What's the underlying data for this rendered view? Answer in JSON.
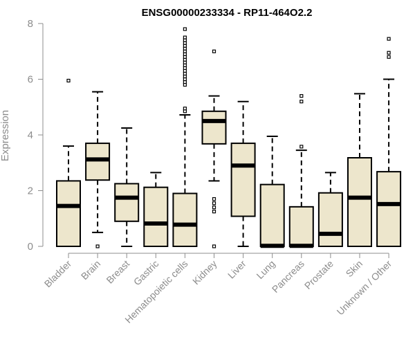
{
  "colors": {
    "box_fill": "#ede6cc",
    "box_stroke": "#000000",
    "axis": "#8c8c8c",
    "text": "#8c8c8c"
  },
  "chart_data": {
    "type": "boxplot",
    "title": "ENSG00000233334 - RP11-464O2.2",
    "xlabel": "",
    "ylabel": "Expression",
    "ylim": [
      0,
      8
    ],
    "yticks": [
      0,
      2,
      4,
      6,
      8
    ],
    "grid": false,
    "legend": "none",
    "categories": [
      "Bladder",
      "Brain",
      "Breast",
      "Gastric",
      "Hematopoietic cells",
      "Kidney",
      "Liver",
      "Lung",
      "Pancreas",
      "Prostate",
      "Skin",
      "Unknown / Other"
    ],
    "boxes": [
      {
        "category": "Bladder",
        "min": 0,
        "q1": 0,
        "median": 1.45,
        "q3": 2.35,
        "max": 3.6,
        "outliers": [
          5.95
        ]
      },
      {
        "category": "Brain",
        "min": 0.5,
        "q1": 2.38,
        "median": 3.12,
        "q3": 3.7,
        "max": 5.55,
        "outliers": [
          0
        ]
      },
      {
        "category": "Breast",
        "min": 0,
        "q1": 0.9,
        "median": 1.75,
        "q3": 2.25,
        "max": 4.25,
        "outliers": []
      },
      {
        "category": "Gastric",
        "min": 0,
        "q1": 0,
        "median": 0.82,
        "q3": 2.12,
        "max": 2.65,
        "outliers": []
      },
      {
        "category": "Hematopoietic cells",
        "min": 0,
        "q1": 0,
        "median": 0.78,
        "q3": 1.9,
        "max": 4.72,
        "outliers": [
          4.85,
          4.95,
          5.8,
          5.9,
          6.0,
          6.1,
          6.2,
          6.3,
          6.4,
          6.5,
          6.6,
          6.7,
          6.8,
          6.9,
          7.0,
          7.1,
          7.2,
          7.3,
          7.4,
          7.5,
          7.8
        ]
      },
      {
        "category": "Kidney",
        "min": 2.35,
        "q1": 3.68,
        "median": 4.5,
        "q3": 4.85,
        "max": 5.4,
        "outliers": [
          0,
          1.25,
          1.4,
          1.55,
          1.7,
          7.0
        ]
      },
      {
        "category": "Liver",
        "min": 0,
        "q1": 1.08,
        "median": 2.9,
        "q3": 3.7,
        "max": 5.2,
        "outliers": []
      },
      {
        "category": "Lung",
        "min": 0,
        "q1": 0,
        "median": 0.02,
        "q3": 2.22,
        "max": 3.95,
        "outliers": []
      },
      {
        "category": "Pancreas",
        "min": 0,
        "q1": 0,
        "median": 0.02,
        "q3": 1.42,
        "max": 3.45,
        "outliers": [
          3.58,
          5.2,
          5.4
        ]
      },
      {
        "category": "Prostate",
        "min": 0,
        "q1": 0,
        "median": 0.45,
        "q3": 1.92,
        "max": 2.65,
        "outliers": []
      },
      {
        "category": "Skin",
        "min": 0,
        "q1": 0,
        "median": 1.75,
        "q3": 3.18,
        "max": 5.48,
        "outliers": []
      },
      {
        "category": "Unknown / Other",
        "min": 0,
        "q1": 0,
        "median": 1.52,
        "q3": 2.68,
        "max": 6.0,
        "outliers": [
          6.8,
          6.95,
          7.45
        ]
      }
    ]
  }
}
